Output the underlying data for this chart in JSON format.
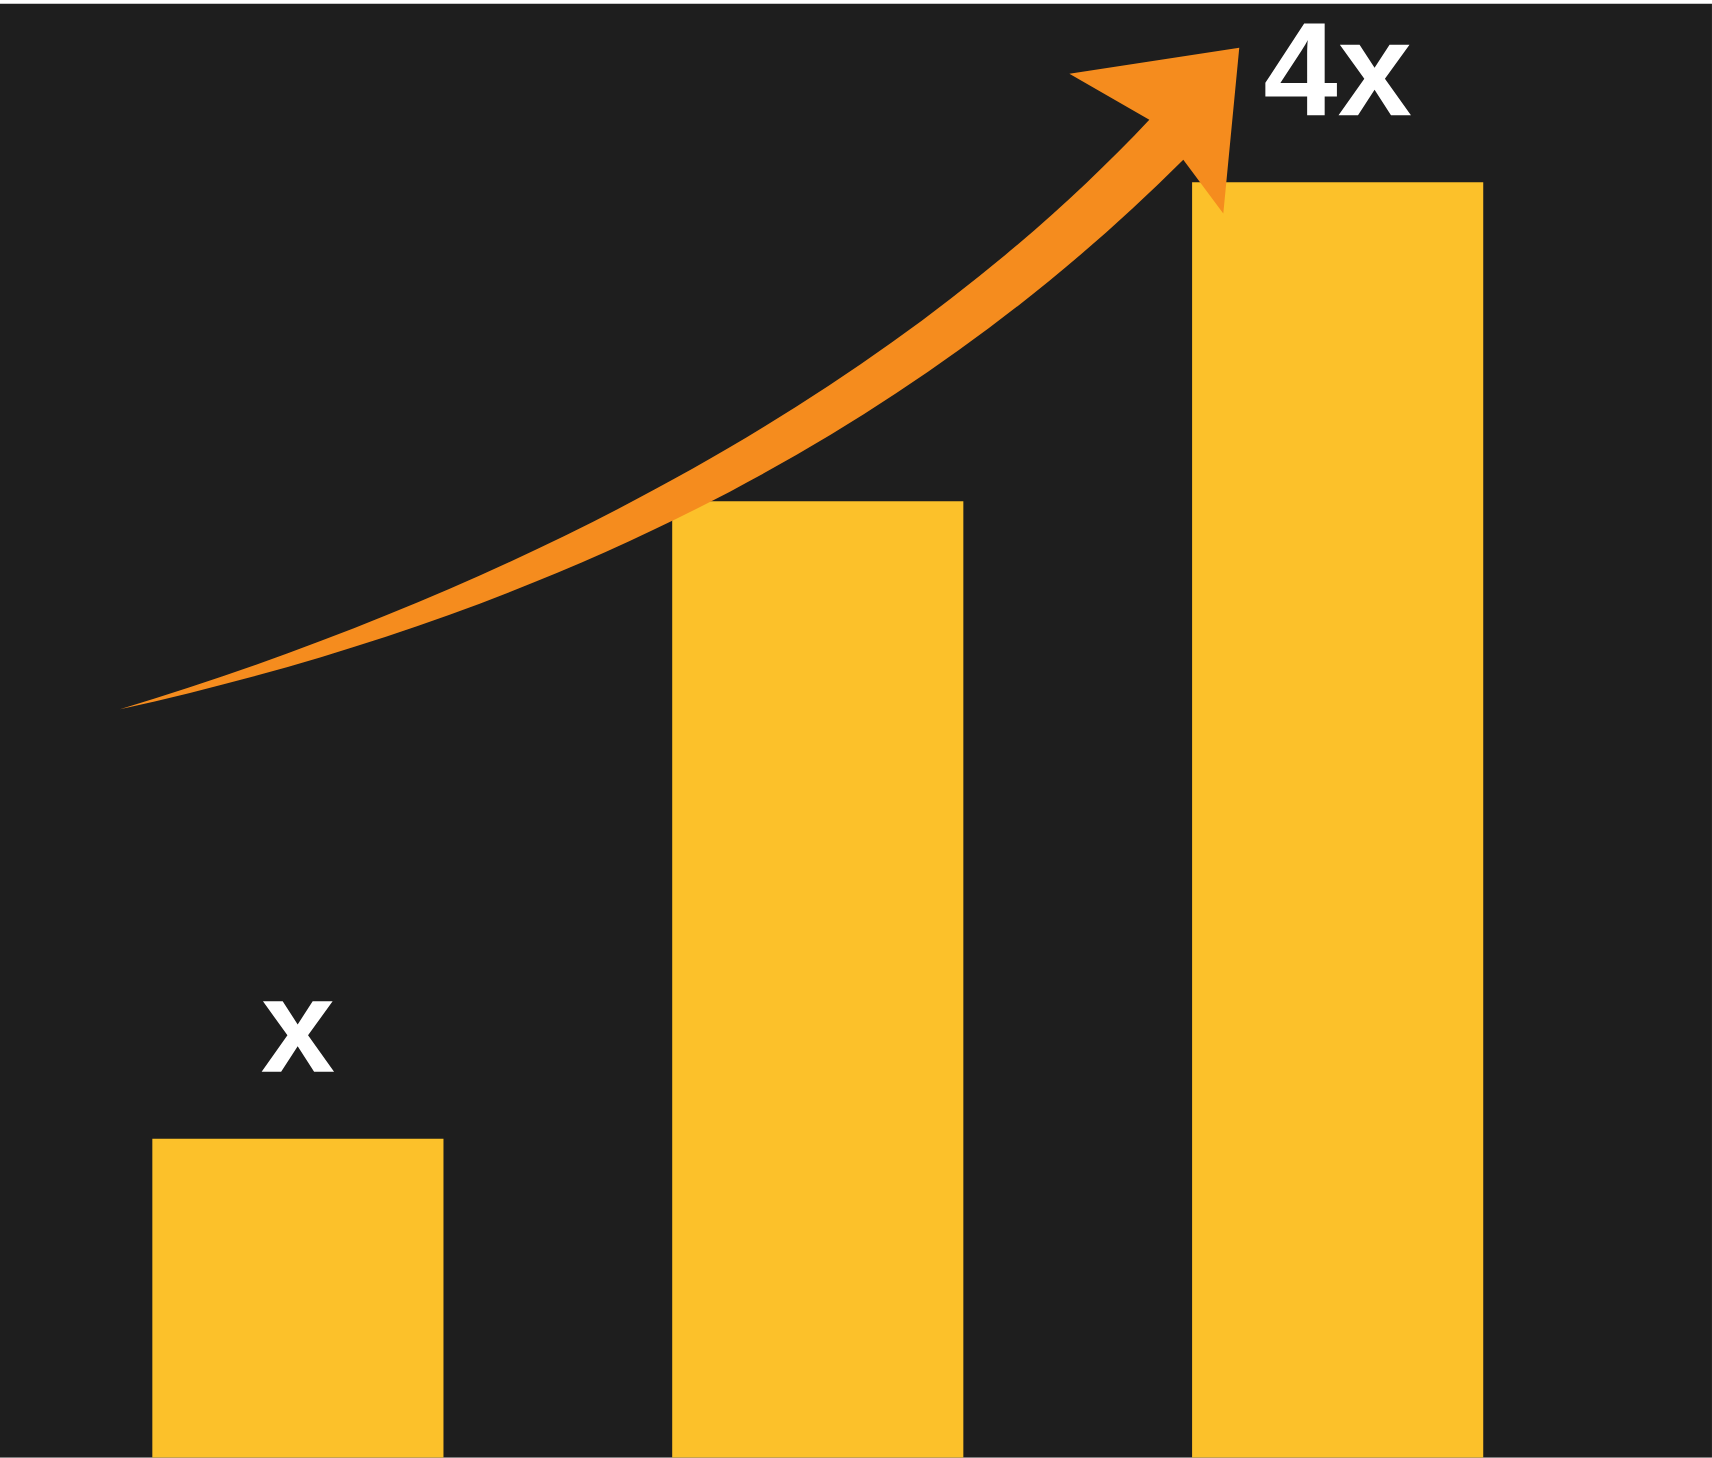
{
  "chart_data": {
    "type": "bar",
    "tick_labels": false,
    "categories": [
      null,
      null,
      null
    ],
    "values": [
      1,
      3,
      4
    ],
    "value_labels": [
      "x",
      null,
      "4x"
    ],
    "color": "#fcc12a"
  }
}
